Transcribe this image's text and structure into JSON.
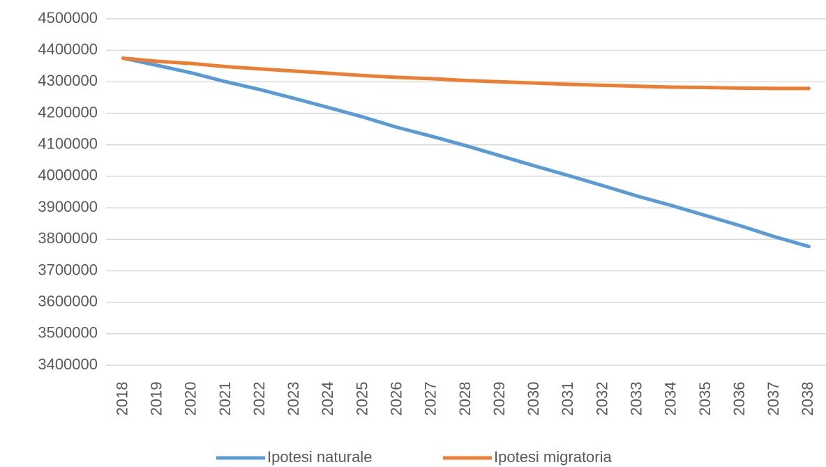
{
  "chart_data": {
    "type": "line",
    "categories": [
      "2018",
      "2019",
      "2020",
      "2021",
      "2022",
      "2023",
      "2024",
      "2025",
      "2026",
      "2027",
      "2028",
      "2029",
      "2030",
      "2031",
      "2032",
      "2033",
      "2034",
      "2035",
      "2036",
      "2037",
      "2038"
    ],
    "series": [
      {
        "name": "Ipotesi naturale",
        "color": "#5b9bd5",
        "values": [
          4375000,
          4352000,
          4328000,
          4300000,
          4275000,
          4247000,
          4218000,
          4188000,
          4155000,
          4127000,
          4097000,
          4065000,
          4033000,
          4002000,
          3970000,
          3937000,
          3907000,
          3875000,
          3843000,
          3808000,
          3777000
        ]
      },
      {
        "name": "Ipotesi migratoria",
        "color": "#ed7d31",
        "values": [
          4375000,
          4365000,
          4358000,
          4348000,
          4341000,
          4334000,
          4327000,
          4320000,
          4314000,
          4310000,
          4304000,
          4300000,
          4296000,
          4292000,
          4289000,
          4286000,
          4283000,
          4282000,
          4280000,
          4279000,
          4279000
        ]
      }
    ],
    "ylim": [
      3400000,
      4500000
    ],
    "yticks": [
      3400000,
      3500000,
      3600000,
      3700000,
      3800000,
      3900000,
      4000000,
      4100000,
      4200000,
      4300000,
      4400000,
      4500000
    ],
    "grid": true,
    "legend": "bottom"
  }
}
